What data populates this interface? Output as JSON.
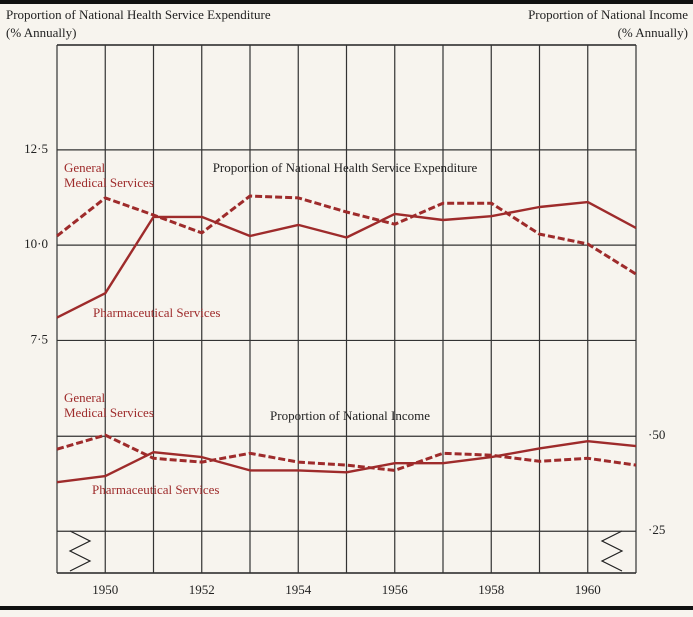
{
  "chart_data": {
    "type": "line",
    "left_title": "Proportion of National Health Service Expenditure",
    "left_unit": "(% Annually)",
    "right_title": "Proportion of National Income",
    "right_unit": "(% Annually)",
    "annotations": [
      "Proportion of National Health Service Expenditure",
      "Proportion of National Income"
    ],
    "x": [
      1949,
      1950,
      1951,
      1952,
      1953,
      1954,
      1955,
      1956,
      1957,
      1958,
      1959,
      1960,
      1961
    ],
    "xlim": [
      1949,
      1961
    ],
    "xticks": [
      1950,
      1952,
      1954,
      1956,
      1958,
      1960
    ],
    "ylim": [
      1.4,
      15.25
    ],
    "yticks": [
      {
        "value": 7.5,
        "label": "7·5"
      },
      {
        "value": 10.0,
        "label": "10·0"
      },
      {
        "value": 12.5,
        "label": "12·5"
      }
    ],
    "y2lim": [
      0.14,
      1.53
    ],
    "y2ticks": [
      {
        "value": 0.25,
        "label": "·25"
      },
      {
        "value": 0.5,
        "label": "·50"
      }
    ],
    "grid": true,
    "series": [
      {
        "name": "General\nMedical Services",
        "color": "#9e2b2b",
        "dashed": true,
        "values": [
          10.24,
          11.24,
          10.79,
          10.32,
          11.29,
          11.24,
          10.87,
          10.55,
          11.1,
          11.1,
          10.29,
          10.03,
          9.24
        ]
      },
      {
        "name": "Pharmaceutical Services",
        "color": "#9e2b2b",
        "dashed": false,
        "values": [
          8.1,
          8.74,
          10.74,
          10.74,
          10.24,
          10.53,
          10.2,
          10.82,
          10.66,
          10.76,
          11.0,
          11.13,
          10.45
        ]
      },
      {
        "name": "General\nMedical Services",
        "color": "#9e2b2b",
        "dashed": true,
        "axis": "y2",
        "values": [
          0.466,
          0.503,
          0.442,
          0.432,
          0.455,
          0.432,
          0.424,
          0.41,
          0.455,
          0.45,
          0.434,
          0.442,
          0.424
        ]
      },
      {
        "name": "Pharmaceutical Services",
        "color": "#9e2b2b",
        "dashed": false,
        "axis": "y2",
        "values": [
          0.379,
          0.395,
          0.458,
          0.445,
          0.41,
          0.41,
          0.405,
          0.429,
          0.429,
          0.445,
          0.468,
          0.487,
          0.474
        ]
      }
    ]
  }
}
